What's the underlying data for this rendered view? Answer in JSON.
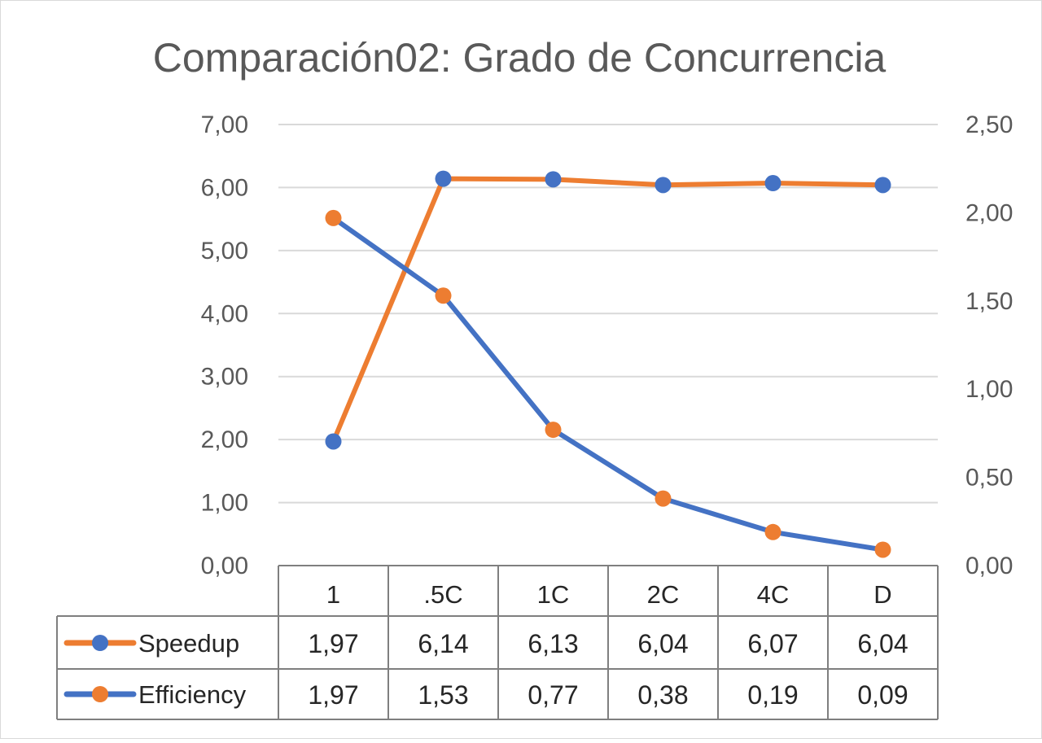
{
  "chart_data": {
    "type": "line",
    "title": "Comparación02: Grado de Concurrencia",
    "categories": [
      "1",
      ".5C",
      "1C",
      "2C",
      "4C",
      "D"
    ],
    "y_left": {
      "min": 0,
      "max": 7,
      "ticks": [
        "0,00",
        "1,00",
        "2,00",
        "3,00",
        "4,00",
        "5,00",
        "6,00",
        "7,00"
      ]
    },
    "y_right": {
      "min": 0,
      "max": 2.5,
      "ticks": [
        "0,00",
        "0,50",
        "1,00",
        "1,50",
        "2,00",
        "2,50"
      ]
    },
    "grid": true,
    "legend": "data-table",
    "series": [
      {
        "name": "Speedup",
        "axis": "left",
        "values": [
          1.97,
          6.14,
          6.13,
          6.04,
          6.07,
          6.04
        ],
        "labels": [
          "1,97",
          "6,14",
          "6,13",
          "6,04",
          "6,07",
          "6,04"
        ],
        "line_color": "#ED7D31",
        "marker_color": "#4472C4"
      },
      {
        "name": "Efficiency",
        "axis": "right",
        "values": [
          1.97,
          1.53,
          0.77,
          0.38,
          0.19,
          0.09
        ],
        "labels": [
          "1,97",
          "1,53",
          "0,77",
          "0,38",
          "0,19",
          "0,09"
        ],
        "line_color": "#4472C4",
        "marker_color": "#ED7D31"
      }
    ]
  }
}
